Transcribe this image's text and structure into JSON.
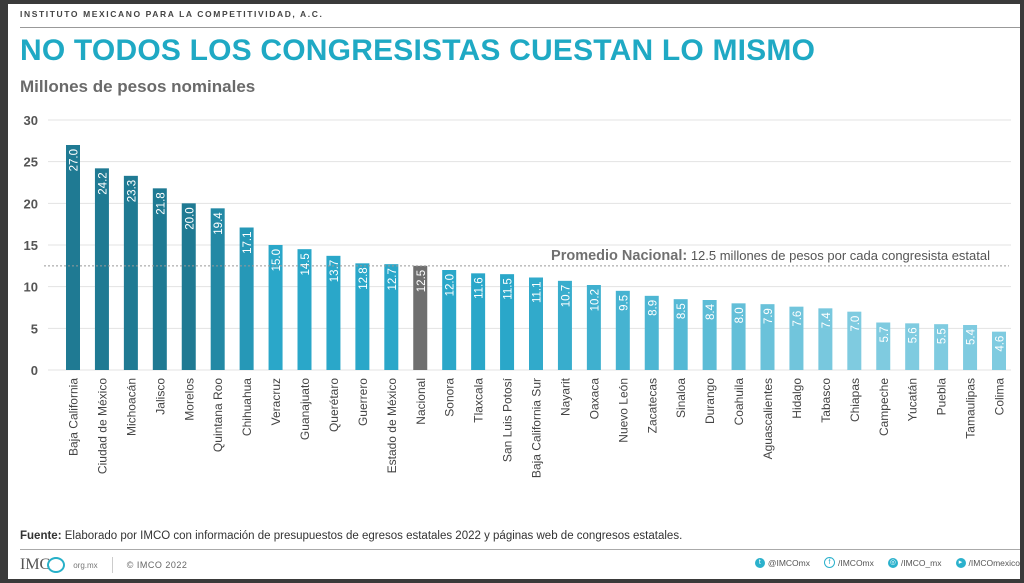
{
  "header": {
    "organization": "INSTITUTO MEXICANO PARA LA COMPETITIVIDAD, A.C.",
    "title": "NO TODOS LOS CONGRESISTAS CUESTAN LO MISMO",
    "subtitle": "Millones de pesos nominales"
  },
  "chart_data": {
    "type": "bar",
    "title": "NO TODOS LOS CONGRESISTAS CUESTAN LO MISMO",
    "ylabel": "Millones de pesos nominales",
    "xlabel": "",
    "ylim": [
      0,
      30
    ],
    "yticks": [
      0,
      5,
      10,
      15,
      20,
      25,
      30
    ],
    "grid": true,
    "categories": [
      "Baja California",
      "Ciudad de México",
      "Michoacán",
      "Jalisco",
      "Morelos",
      "Quintana Roo",
      "Chihuahua",
      "Veracruz",
      "Guanajuato",
      "Querétaro",
      "Guerrero",
      "Estado de México",
      "Nacional",
      "Sonora",
      "Tlaxcala",
      "San Luis Potosí",
      "Baja California Sur",
      "Nayarit",
      "Oaxaca",
      "Nuevo León",
      "Zacatecas",
      "Sinaloa",
      "Durango",
      "Coahuila",
      "Aguascalientes",
      "Hidalgo",
      "Tabasco",
      "Chiapas",
      "Campeche",
      "Yucatán",
      "Puebla",
      "Tamaulipas",
      "Colima"
    ],
    "values": [
      27.0,
      24.2,
      23.3,
      21.8,
      20.0,
      19.4,
      17.1,
      15.0,
      14.5,
      13.7,
      12.8,
      12.7,
      12.5,
      12.0,
      11.6,
      11.5,
      11.1,
      10.7,
      10.2,
      9.5,
      8.9,
      8.5,
      8.4,
      8.0,
      7.9,
      7.6,
      7.4,
      7.0,
      5.7,
      5.6,
      5.5,
      5.4,
      4.6
    ],
    "value_labels": [
      "27.0",
      "24.2",
      "23.3",
      "21.8",
      "20.0",
      "19.4",
      "17.1",
      "15.0",
      "14.5",
      "13.7",
      "12.8",
      "12.7",
      "12.5",
      "12.0",
      "11.6",
      "11.5",
      "11.1",
      "10.7",
      "10.2",
      "9.5",
      "8.9",
      "8.5",
      "8.4",
      "8.0",
      "7.9",
      "7.6",
      "7.4",
      "7.0",
      "5.7",
      "5.6",
      "5.5",
      "5.4",
      "4.6"
    ],
    "highlight_category": "Nacional",
    "reference_line": {
      "value": 12.5,
      "label_bold": "Promedio Nacional:",
      "label_text": " 12.5 millones de pesos por cada congresista estatal"
    },
    "colors": {
      "high": "#1f7a93",
      "mid": "#2aa7c9",
      "low": "#7fcbe0",
      "highlight": "#6f6f6f",
      "grid": "#e3e3e3",
      "reference": "#999999"
    }
  },
  "footer": {
    "source_bold": "Fuente:",
    "source_text": " Elaborado por IMCO con información de presupuestos de egresos estatales 2022 y páginas web de congresos estatales.",
    "logo": "IMC",
    "logo_domain": "org.mx",
    "copyright": "© IMCO 2022",
    "social": [
      {
        "icon": "twitter-icon",
        "glyph": "t",
        "label": "@IMCOmx"
      },
      {
        "icon": "facebook-icon",
        "glyph": "f",
        "label": "/IMCOmx"
      },
      {
        "icon": "instagram-icon",
        "glyph": "◎",
        "label": "/IMCO_mx"
      },
      {
        "icon": "youtube-icon",
        "glyph": "▸",
        "label": "/IMCOmexico"
      }
    ]
  }
}
